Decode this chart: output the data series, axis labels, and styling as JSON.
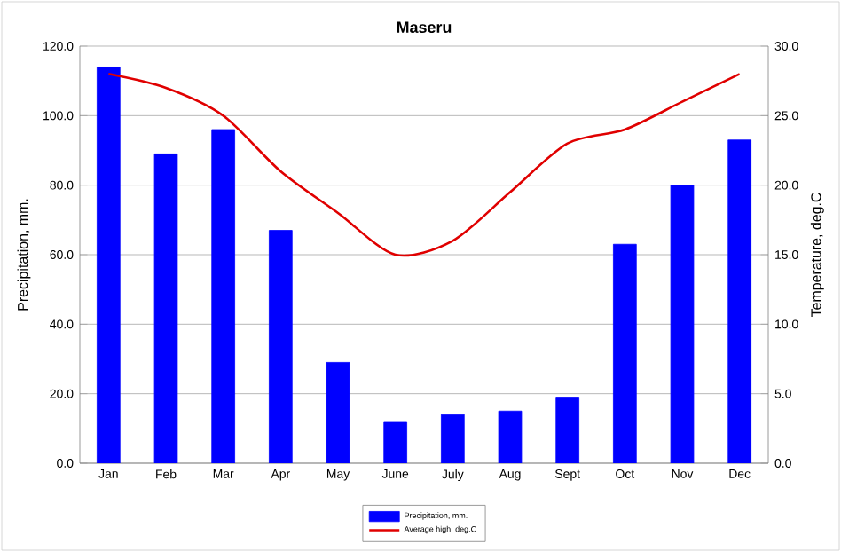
{
  "chart_data": {
    "type": "bar",
    "title": "Maseru",
    "ylabel": "Precipitation, mm.",
    "y2label": "Temperature, deg.C",
    "categories": [
      "Jan",
      "Feb",
      "Mar",
      "Apr",
      "May",
      "June",
      "July",
      "Aug",
      "Sept",
      "Oct",
      "Nov",
      "Dec"
    ],
    "series": [
      {
        "name": "Precipitation, mm.",
        "color": "#0000ff",
        "values": [
          114,
          89,
          96,
          67,
          29,
          12,
          14,
          15,
          19,
          63,
          80,
          93
        ]
      },
      {
        "name": "Average high, deg.C",
        "type": "line",
        "axis": "y2",
        "color": "#e00000",
        "values": [
          28,
          27,
          25,
          21,
          18,
          15,
          16,
          19.5,
          23,
          24,
          26,
          28
        ]
      }
    ],
    "ylim": [
      0,
      120
    ],
    "yticks": [
      {
        "value": 0,
        "label": "0.0"
      },
      {
        "value": 20,
        "label": "20.0"
      },
      {
        "value": 40,
        "label": "40.0"
      },
      {
        "value": 60,
        "label": "60.0"
      },
      {
        "value": 80,
        "label": "80.0"
      },
      {
        "value": 100,
        "label": "100.0"
      },
      {
        "value": 120,
        "label": "120.0"
      }
    ],
    "y2lim": [
      0,
      30
    ],
    "y2ticks": [
      {
        "value": 0,
        "label": "0.0"
      },
      {
        "value": 5,
        "label": "5.0"
      },
      {
        "value": 10,
        "label": "10.0"
      },
      {
        "value": 15,
        "label": "15.0"
      },
      {
        "value": 20,
        "label": "20.0"
      },
      {
        "value": 25,
        "label": "25.0"
      },
      {
        "value": 30,
        "label": "30.0"
      }
    ],
    "grid": "y",
    "legend": "bottom",
    "marker": "none",
    "line_style": "solid"
  }
}
